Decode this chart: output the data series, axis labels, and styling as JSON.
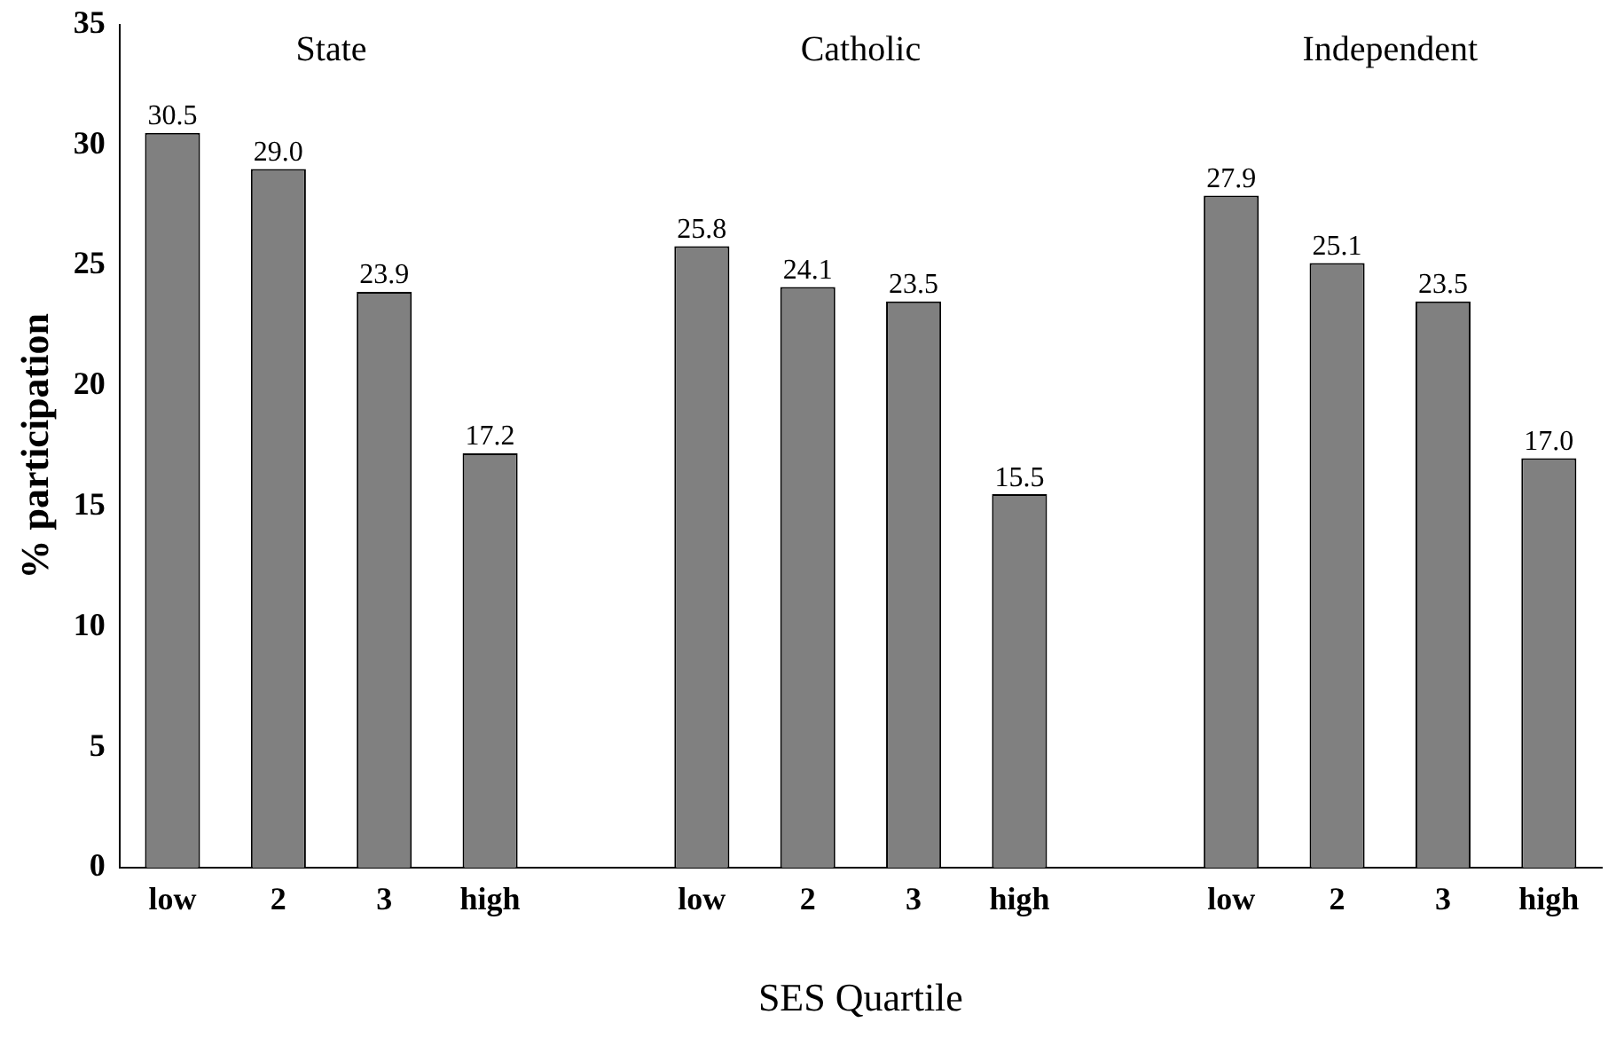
{
  "chart_data": {
    "type": "bar",
    "xlabel": "SES Quartile",
    "ylabel": "% participation",
    "categories": [
      "low",
      "2",
      "3",
      "high",
      null,
      "low",
      "2",
      "3",
      "high",
      null,
      "low",
      "2",
      "3",
      "high"
    ],
    "values": [
      30.5,
      29.0,
      23.9,
      17.2,
      null,
      25.8,
      24.1,
      23.5,
      15.5,
      null,
      27.9,
      25.1,
      23.5,
      17.0
    ],
    "value_labels": [
      "30.5",
      "29.0",
      "23.9",
      "17.2",
      null,
      "25.8",
      "24.1",
      "23.5",
      "15.5",
      null,
      "27.9",
      "25.1",
      "23.5",
      "17.0"
    ],
    "color": "#808080",
    "ylim": [
      0,
      35
    ],
    "yticks": [
      0,
      5,
      10,
      15,
      20,
      25,
      30,
      35
    ],
    "grid": false,
    "legend": false,
    "annotations": [
      "State",
      "Catholic",
      "Independent"
    ]
  }
}
